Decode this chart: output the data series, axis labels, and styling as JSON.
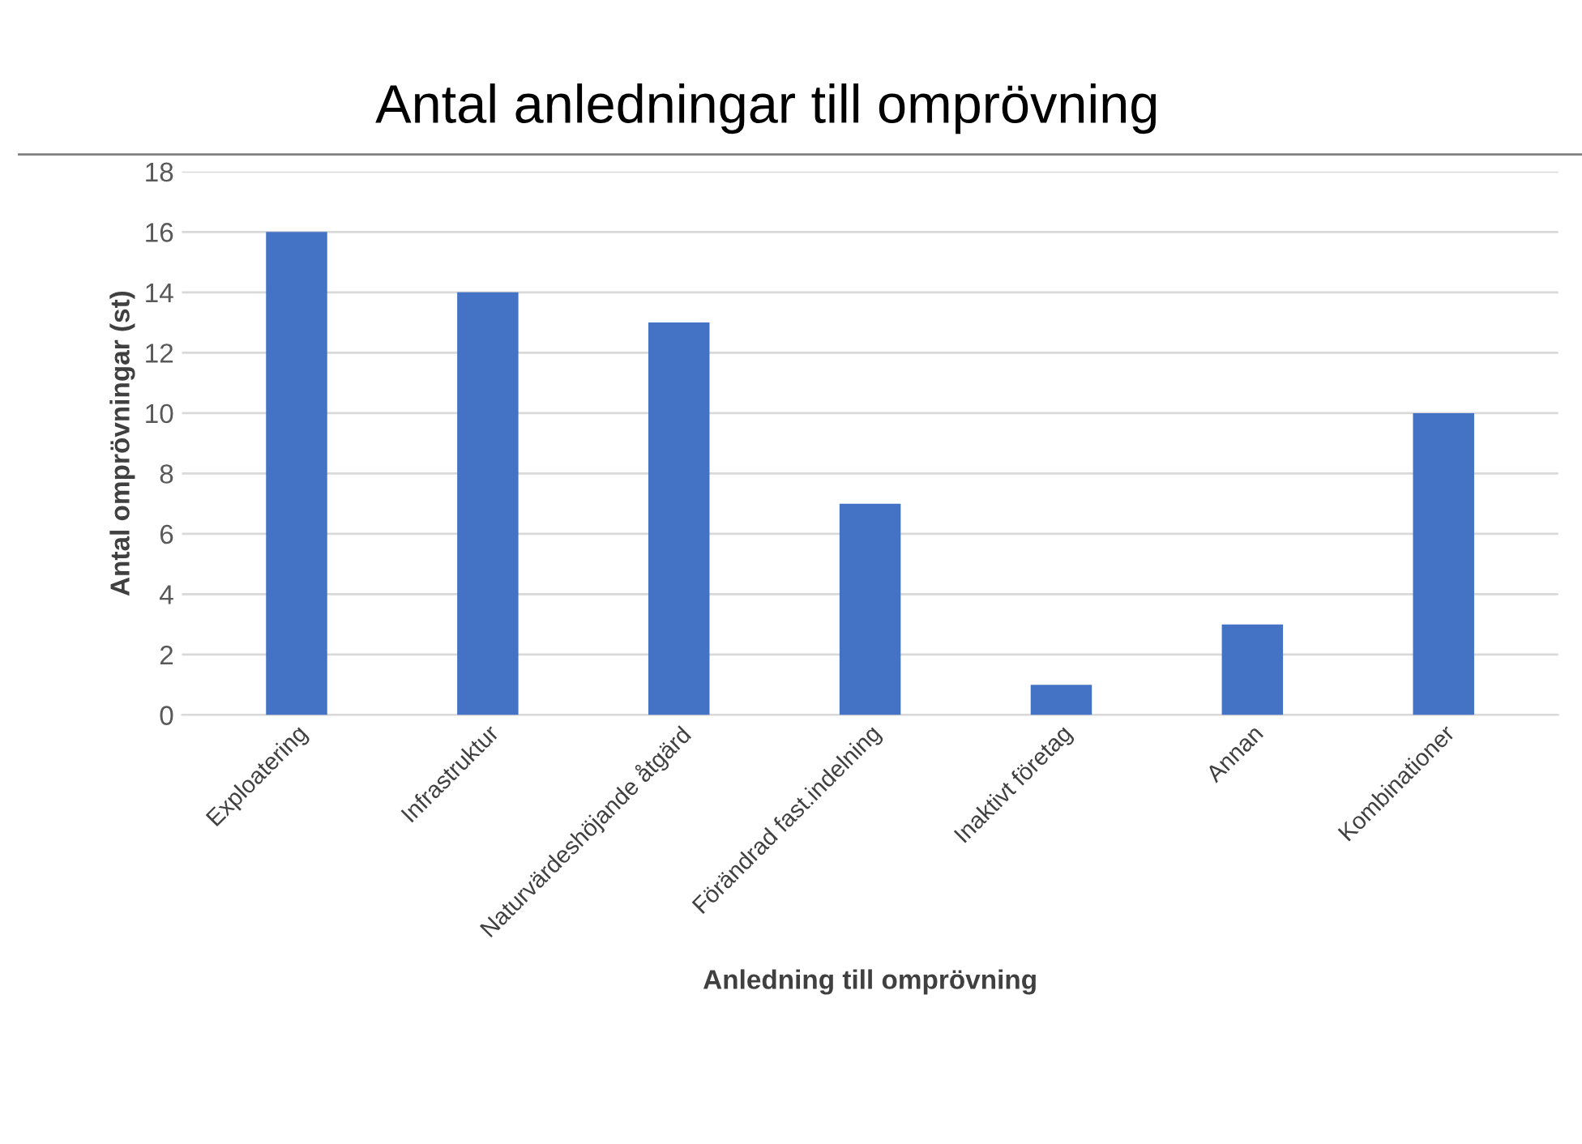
{
  "chart_data": {
    "type": "bar",
    "title": "Antal anledningar till omprövning",
    "xlabel": "Anledning till omprövning",
    "ylabel": "Antal omprövningar (st)",
    "categories": [
      "Exploatering",
      "Infrastruktur",
      "Naturvärdeshöjande åtgärd",
      "Förändrad fast.indelning",
      "Inaktivt företag",
      "Annan",
      "Kombinationer"
    ],
    "values": [
      16,
      14,
      13,
      7,
      1,
      3,
      10
    ],
    "color": "#4472c4",
    "ylim": [
      0,
      18
    ],
    "yticks": [
      0,
      2,
      4,
      6,
      8,
      10,
      12,
      14,
      16,
      18
    ],
    "grid": "y",
    "legend": false
  }
}
